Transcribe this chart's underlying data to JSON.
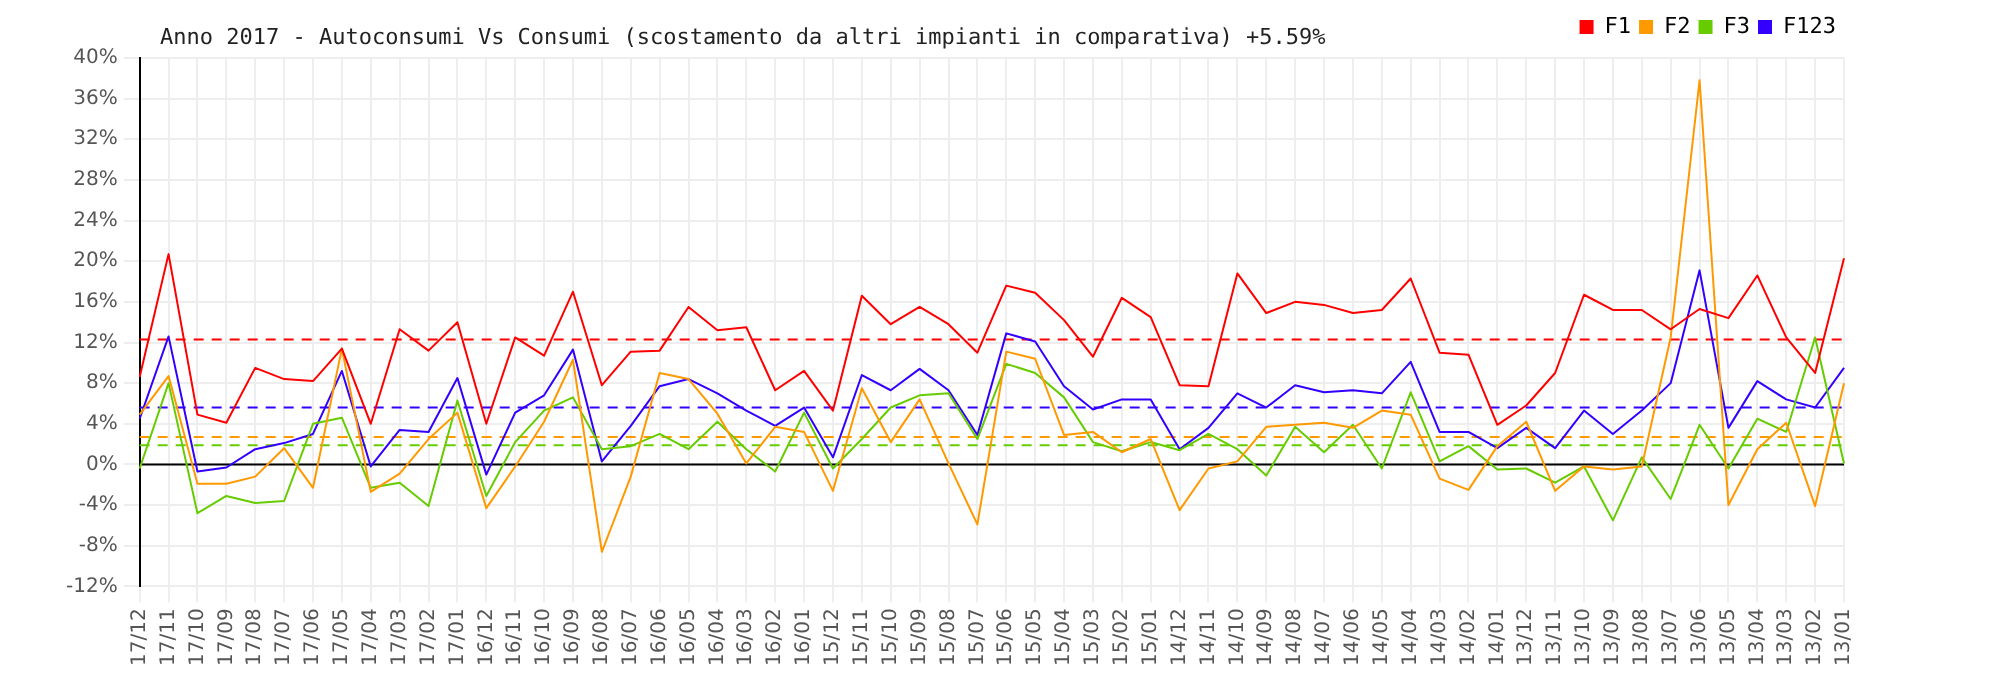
{
  "chart_data": {
    "type": "line",
    "title": "Anno 2017 - Autoconsumi Vs Consumi (scostamento da altri impianti in comparativa) +5.59%",
    "categories": [
      "17/12",
      "17/11",
      "17/10",
      "17/09",
      "17/08",
      "17/07",
      "17/06",
      "17/05",
      "17/04",
      "17/03",
      "17/02",
      "17/01",
      "16/12",
      "16/11",
      "16/10",
      "16/09",
      "16/08",
      "16/07",
      "16/06",
      "16/05",
      "16/04",
      "16/03",
      "16/02",
      "16/01",
      "15/12",
      "15/11",
      "15/10",
      "15/09",
      "15/08",
      "15/07",
      "15/06",
      "15/05",
      "15/04",
      "15/03",
      "15/02",
      "15/01",
      "14/12",
      "14/11",
      "14/10",
      "14/09",
      "14/08",
      "14/07",
      "14/06",
      "14/05",
      "14/04",
      "14/03",
      "14/02",
      "14/01",
      "13/12",
      "13/11",
      "13/10",
      "13/09",
      "13/08",
      "13/07",
      "13/06",
      "13/05",
      "13/04",
      "13/03",
      "13/02",
      "13/01"
    ],
    "series": [
      {
        "name": "F1",
        "color": "#ff0000",
        "values": [
          8.6,
          20.7,
          4.9,
          4.1,
          9.5,
          8.4,
          8.2,
          11.4,
          4.0,
          13.3,
          11.2,
          14.0,
          4.0,
          12.5,
          10.7,
          17.0,
          7.8,
          11.1,
          11.2,
          15.5,
          13.2,
          13.5,
          7.3,
          9.2,
          5.3,
          16.6,
          13.8,
          15.5,
          13.8,
          11.0,
          17.6,
          16.9,
          14.2,
          10.6,
          16.4,
          14.5,
          7.8,
          7.7,
          18.8,
          14.9,
          16.0,
          15.7,
          14.9,
          15.2,
          18.3,
          11.0,
          10.8,
          3.9,
          5.8,
          9.0,
          16.7,
          15.2,
          15.2,
          13.3,
          15.3,
          14.4,
          18.6,
          12.5,
          9.0,
          20.3
        ]
      },
      {
        "name": "F2",
        "color": "#ff9900",
        "values": [
          4.9,
          8.7,
          -1.9,
          -1.9,
          -1.2,
          1.6,
          -2.3,
          11.4,
          -2.7,
          -0.9,
          2.5,
          5.1,
          -4.3,
          -0.2,
          4.2,
          10.3,
          -8.6,
          -1.2,
          9.0,
          8.4,
          5.0,
          0.1,
          3.7,
          3.2,
          -2.6,
          7.5,
          2.2,
          6.4,
          0.1,
          -5.9,
          11.1,
          10.4,
          2.9,
          3.2,
          1.2,
          2.5,
          -4.5,
          -0.4,
          0.3,
          3.7,
          3.9,
          4.1,
          3.6,
          5.3,
          4.9,
          -1.4,
          -2.5,
          1.8,
          4.2,
          -2.6,
          -0.2,
          -0.5,
          -0.2,
          12.5,
          37.8,
          -4.0,
          1.5,
          4.1,
          -4.1,
          8.0
        ]
      },
      {
        "name": "F3",
        "color": "#66cc00",
        "values": [
          -0.4,
          8.0,
          -4.8,
          -3.1,
          -3.8,
          -3.6,
          4.0,
          4.6,
          -2.3,
          -1.8,
          -4.1,
          6.3,
          -3.1,
          2.2,
          5.3,
          6.6,
          1.5,
          1.8,
          3.0,
          1.5,
          4.2,
          1.5,
          -0.7,
          5.1,
          -0.4,
          2.5,
          5.6,
          6.8,
          7.0,
          2.5,
          9.9,
          9.0,
          6.6,
          2.2,
          1.3,
          2.2,
          1.4,
          3.0,
          1.5,
          -1.1,
          3.7,
          1.2,
          3.9,
          -0.4,
          7.1,
          0.3,
          1.8,
          -0.5,
          -0.4,
          -1.8,
          -0.2,
          -5.5,
          0.7,
          -3.4,
          3.9,
          -0.4,
          4.5,
          3.2,
          12.5,
          0.1
        ]
      },
      {
        "name": "F123",
        "color": "#3300ff",
        "values": [
          4.5,
          12.6,
          -0.7,
          -0.3,
          1.5,
          2.1,
          3.0,
          9.2,
          -0.2,
          3.4,
          3.2,
          8.5,
          -1.0,
          5.1,
          6.8,
          11.3,
          0.3,
          3.8,
          7.7,
          8.4,
          7.0,
          5.3,
          3.8,
          5.6,
          0.7,
          8.8,
          7.3,
          9.4,
          7.3,
          2.9,
          12.9,
          12.1,
          7.7,
          5.4,
          6.4,
          6.4,
          1.5,
          3.6,
          7.0,
          5.6,
          7.8,
          7.1,
          7.3,
          7.0,
          10.1,
          3.2,
          3.2,
          1.6,
          3.6,
          1.6,
          5.3,
          3.0,
          5.3,
          8.0,
          19.1,
          3.6,
          8.2,
          6.4,
          5.6,
          9.5
        ]
      }
    ],
    "ylim": [
      -12,
      40
    ],
    "yticks": [
      {
        "value": -12,
        "label": "-12%"
      },
      {
        "value": -8,
        "label": "-8%"
      },
      {
        "value": -4,
        "label": "-4%"
      },
      {
        "value": 0,
        "label": "0%"
      },
      {
        "value": 4,
        "label": "4%"
      },
      {
        "value": 8,
        "label": "8%"
      },
      {
        "value": 12,
        "label": "12%"
      },
      {
        "value": 16,
        "label": "16%"
      },
      {
        "value": 20,
        "label": "20%"
      },
      {
        "value": 24,
        "label": "24%"
      },
      {
        "value": 28,
        "label": "28%"
      },
      {
        "value": 32,
        "label": "32%"
      },
      {
        "value": 36,
        "label": "36%"
      },
      {
        "value": 40,
        "label": "40%"
      }
    ],
    "ref_lines": [
      {
        "axis": "y",
        "value": 0,
        "color": "#000000",
        "line_style": "solid"
      },
      {
        "axis": "y",
        "value": 12.3,
        "color": "#ff0000",
        "line_style": "dashed"
      },
      {
        "axis": "y",
        "value": 2.7,
        "color": "#ff9900",
        "line_style": "dashed"
      },
      {
        "axis": "y",
        "value": 1.9,
        "color": "#66cc00",
        "line_style": "dashed"
      },
      {
        "axis": "y",
        "value": 5.6,
        "color": "#3300ff",
        "line_style": "dashed"
      }
    ],
    "grid": true,
    "legend": "top right",
    "marker": "none",
    "line_style": "solid"
  }
}
